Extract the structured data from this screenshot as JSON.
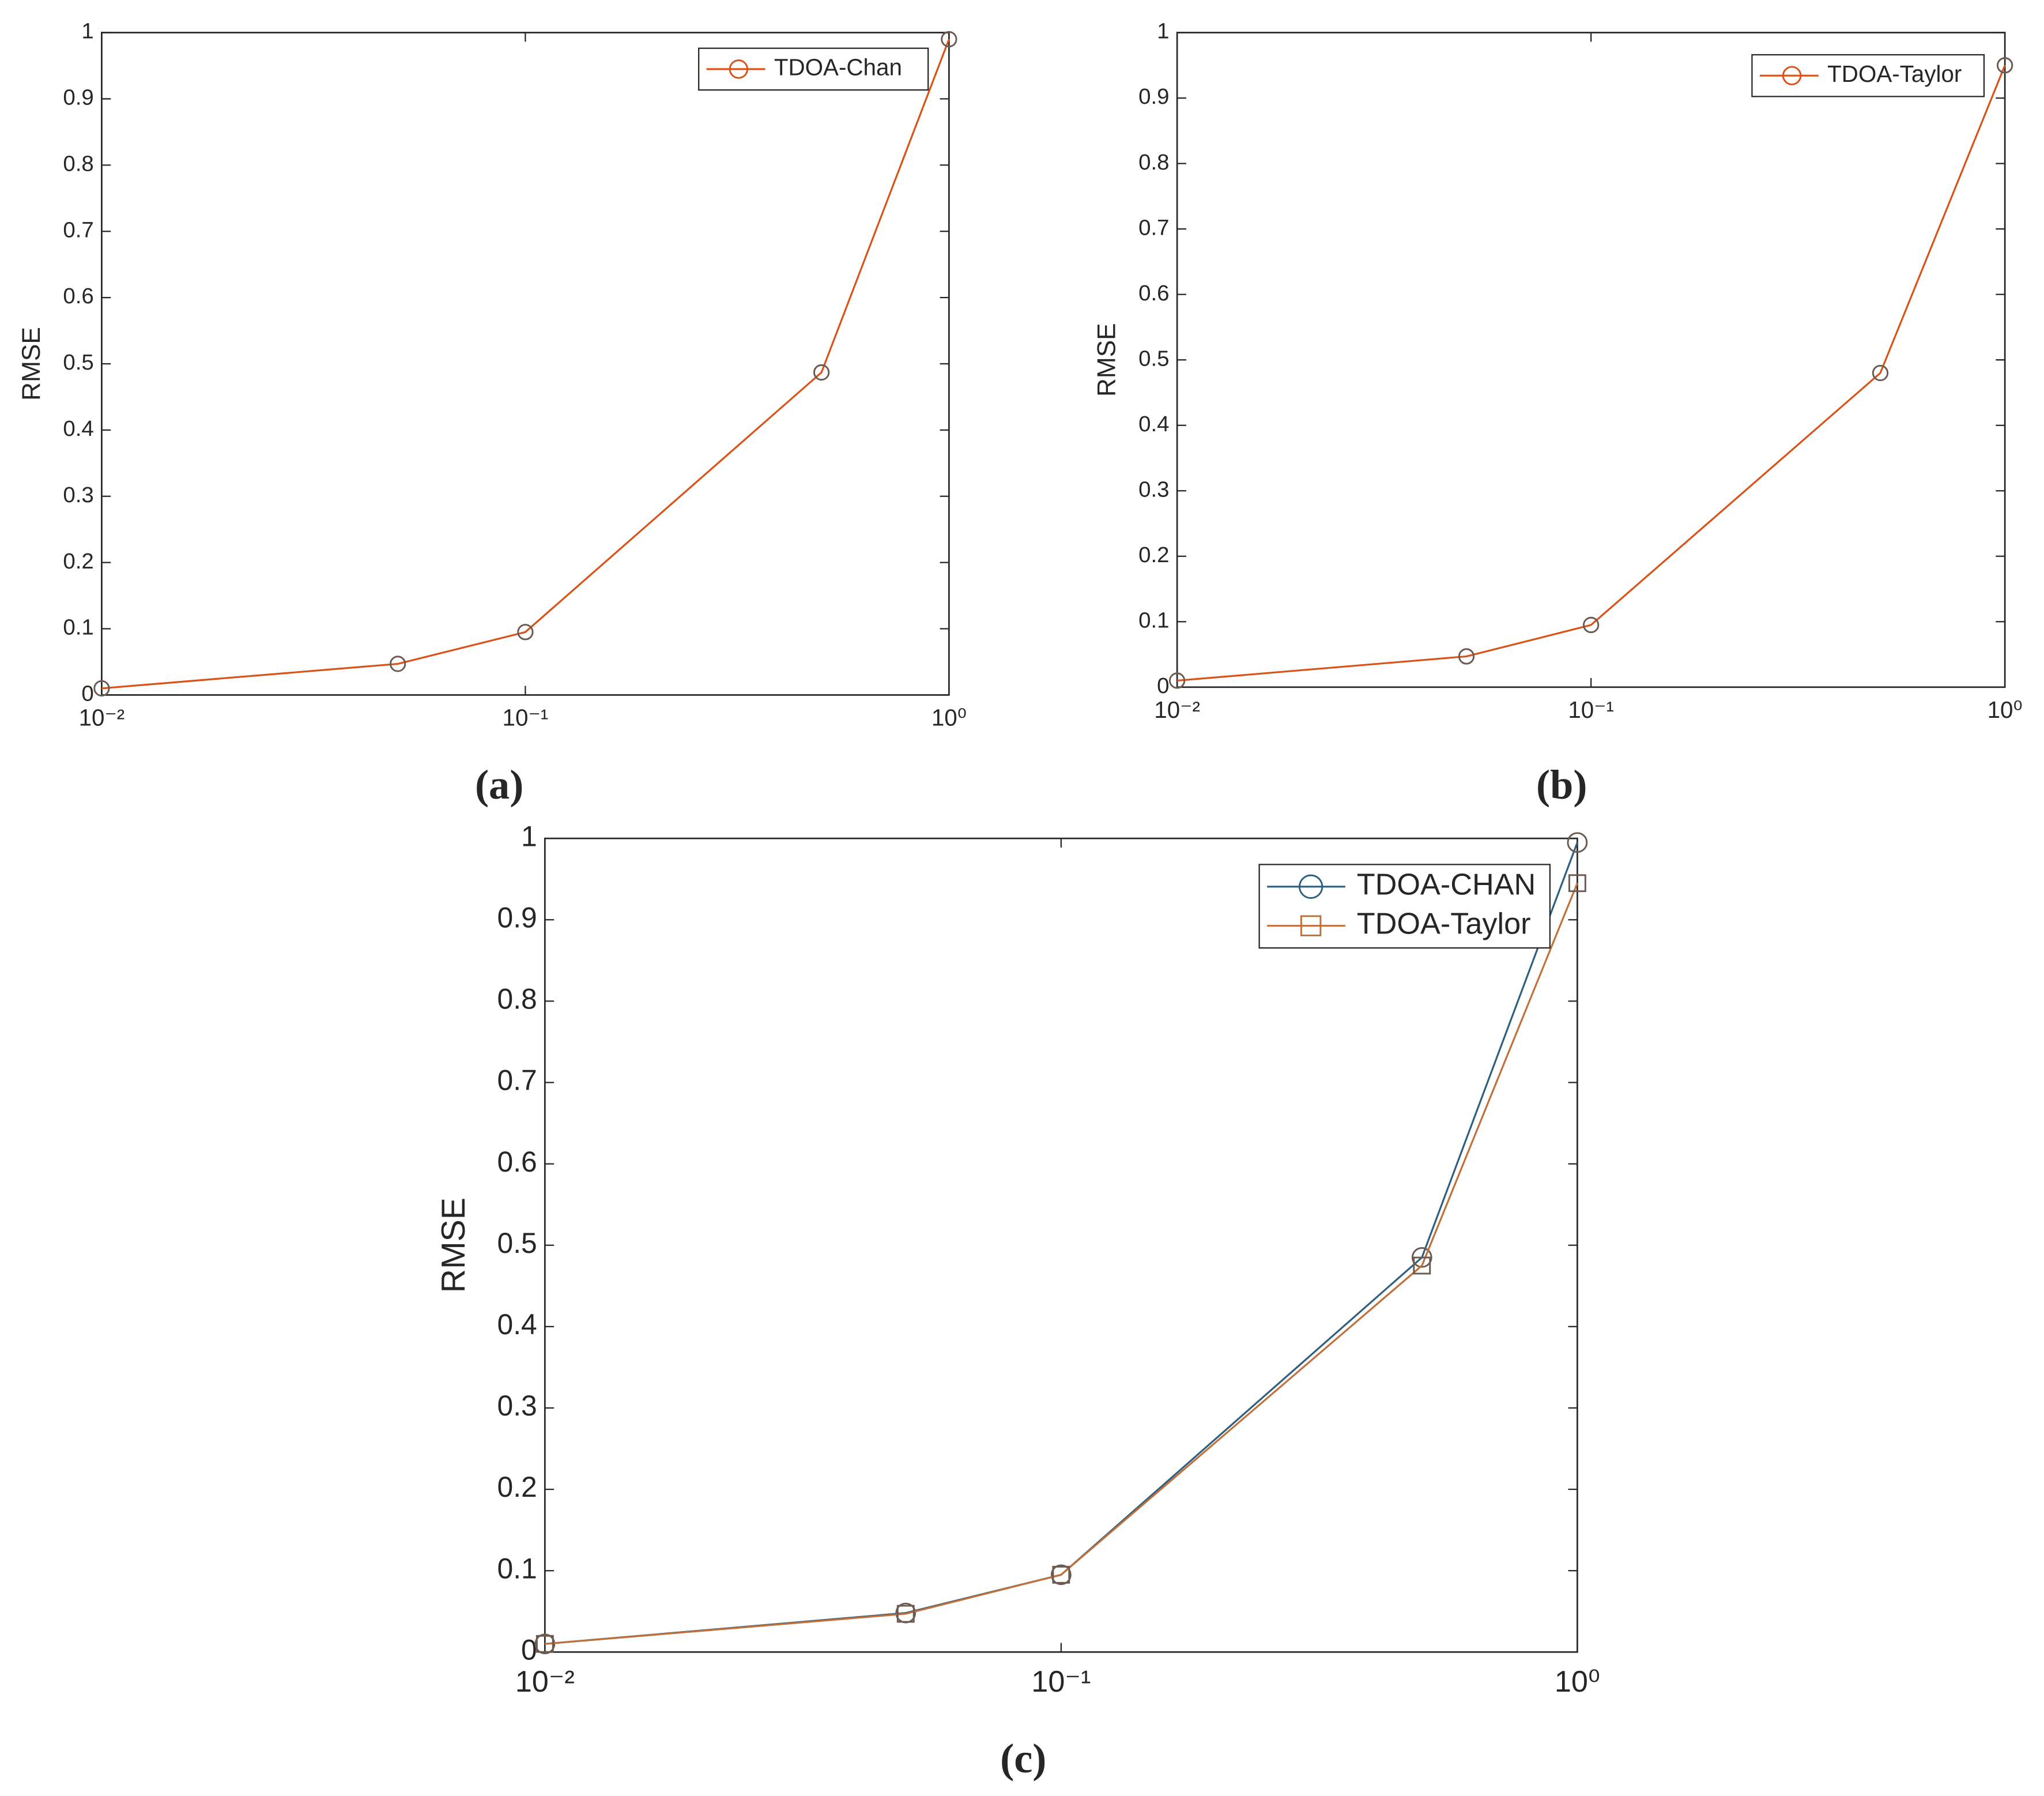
{
  "chart_data": [
    {
      "type": "line",
      "label": "(a)",
      "y_label": "RMSE",
      "x_scale": "log",
      "x": [
        0.01,
        0.05,
        0.1,
        0.5,
        1
      ],
      "series": [
        {
          "name": "TDOA-Chan",
          "color": "#d95319",
          "marker": "circle",
          "values": [
            0.01,
            0.047,
            0.095,
            0.487,
            0.99
          ]
        }
      ],
      "xlim": [
        0.01,
        1
      ],
      "ylim": [
        0,
        1
      ],
      "xticks": [
        {
          "value": 0.01,
          "label": "10⁻²"
        },
        {
          "value": 0.1,
          "label": "10⁻¹"
        },
        {
          "value": 1,
          "label": "10⁰"
        }
      ],
      "yticks": [
        0,
        0.1,
        0.2,
        0.3,
        0.4,
        0.5,
        0.6,
        0.7,
        0.8,
        0.9,
        1
      ],
      "legend": "upper right",
      "grid": false
    },
    {
      "type": "line",
      "label": "(b)",
      "y_label": "RMSE",
      "x_scale": "log",
      "x": [
        0.01,
        0.05,
        0.1,
        0.5,
        1
      ],
      "series": [
        {
          "name": "TDOA-Taylor",
          "color": "#d95319",
          "marker": "circle",
          "values": [
            0.01,
            0.047,
            0.095,
            0.48,
            0.95
          ]
        }
      ],
      "xlim": [
        0.01,
        1
      ],
      "ylim": [
        0,
        1
      ],
      "xticks": [
        {
          "value": 0.01,
          "label": "10⁻²"
        },
        {
          "value": 0.1,
          "label": "10⁻¹"
        },
        {
          "value": 1,
          "label": "10⁰"
        }
      ],
      "yticks": [
        0,
        0.1,
        0.2,
        0.3,
        0.4,
        0.5,
        0.6,
        0.7,
        0.8,
        0.9,
        1
      ],
      "legend": "upper right",
      "grid": false
    },
    {
      "type": "line",
      "label": "(c)",
      "y_label": "RMSE",
      "x_scale": "log",
      "x": [
        0.01,
        0.05,
        0.1,
        0.5,
        1
      ],
      "series": [
        {
          "name": "TDOA-CHAN",
          "color": "#2f5f7f",
          "marker": "circle",
          "values": [
            0.01,
            0.048,
            0.095,
            0.485,
            0.995
          ]
        },
        {
          "name": "TDOA-Taylor",
          "color": "#c0703a",
          "marker": "square",
          "values": [
            0.01,
            0.047,
            0.095,
            0.475,
            0.945
          ]
        }
      ],
      "xlim": [
        0.01,
        1
      ],
      "ylim": [
        0,
        1
      ],
      "xticks": [
        {
          "value": 0.01,
          "label": "10⁻²"
        },
        {
          "value": 0.1,
          "label": "10⁻¹"
        },
        {
          "value": 1,
          "label": "10⁰"
        }
      ],
      "yticks": [
        0,
        0.1,
        0.2,
        0.3,
        0.4,
        0.5,
        0.6,
        0.7,
        0.8,
        0.9,
        1
      ],
      "legend": "upper right",
      "grid": false
    }
  ]
}
